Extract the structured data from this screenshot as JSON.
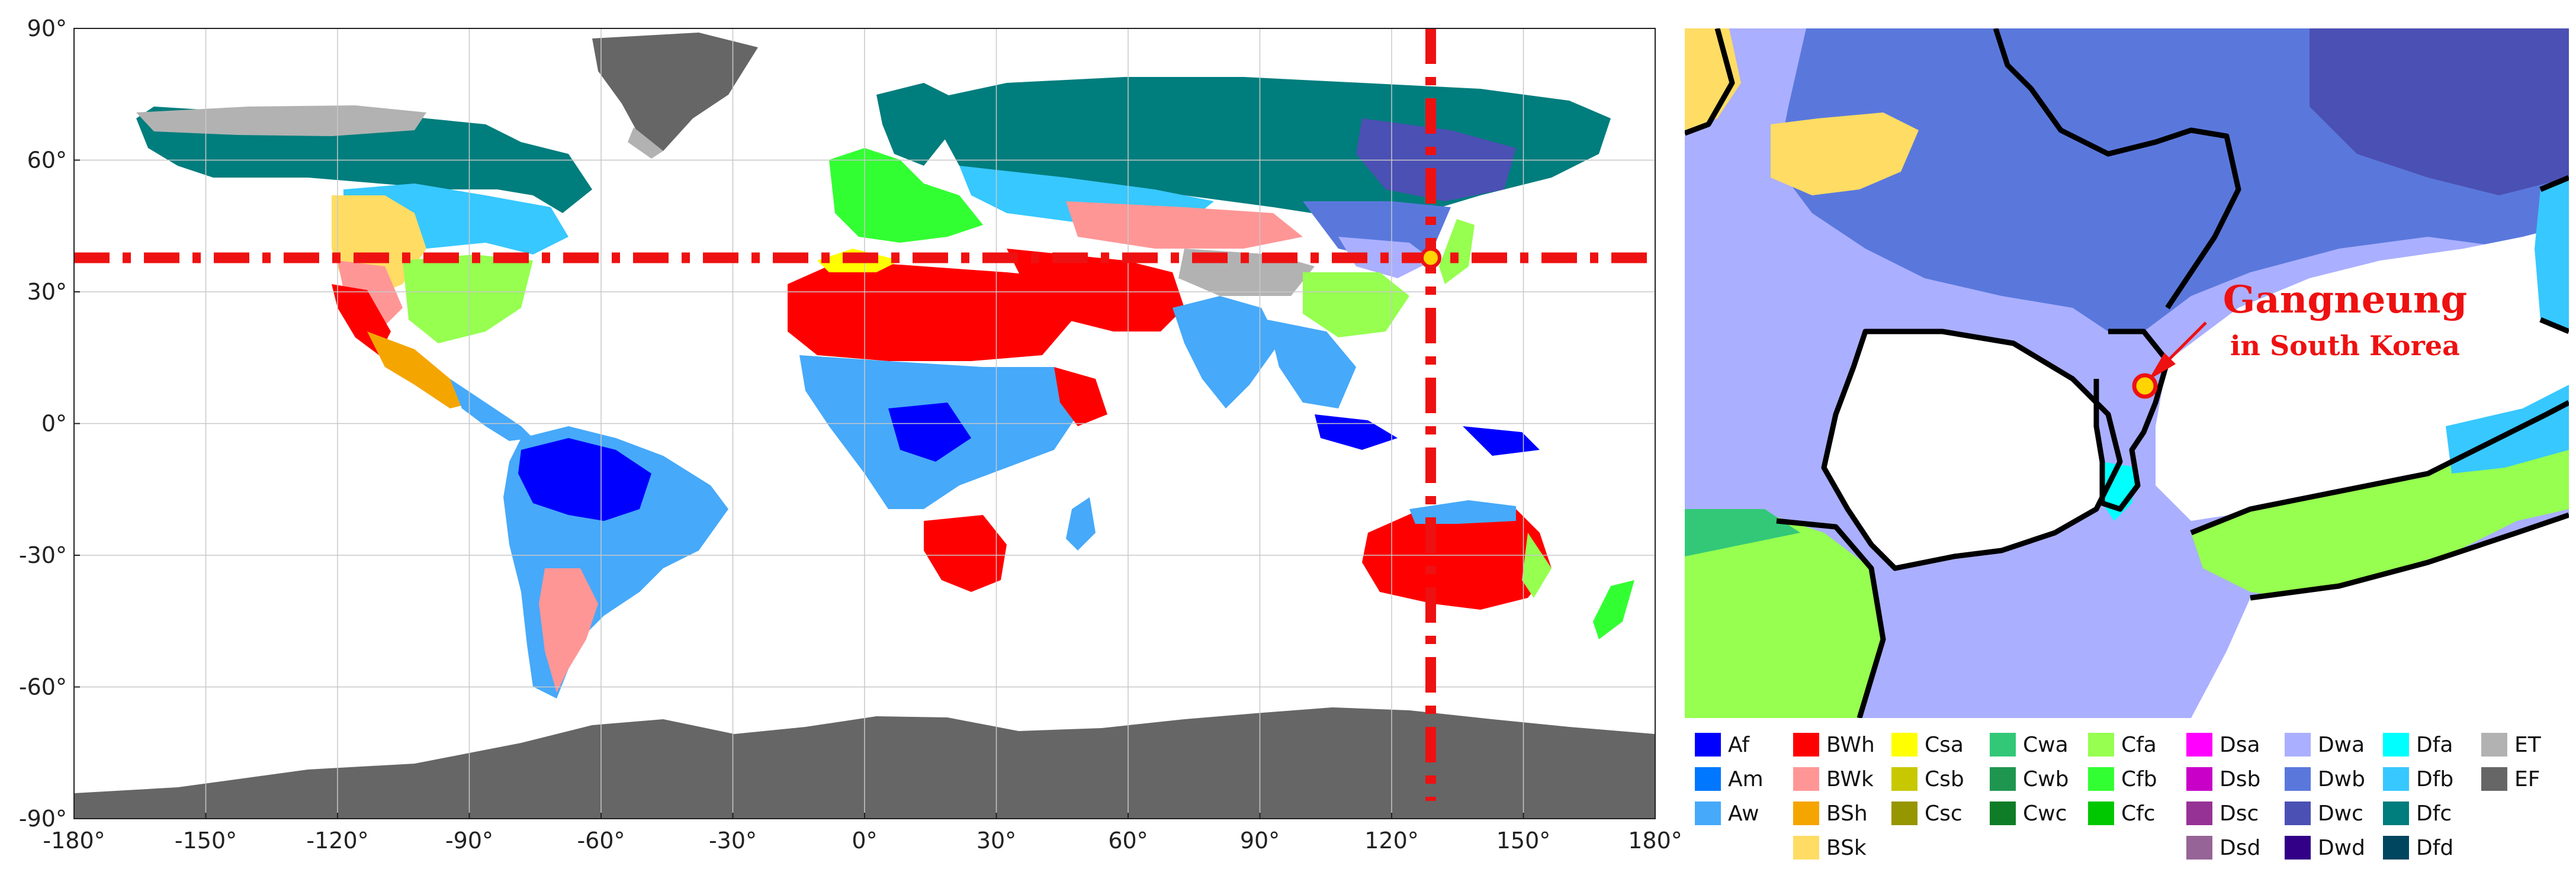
{
  "world_map": {
    "x_ticks": [
      "-180°",
      "-150°",
      "-120°",
      "-90°",
      "-60°",
      "-30°",
      "0°",
      "30°",
      "60°",
      "90°",
      "120°",
      "150°",
      "180°"
    ],
    "y_ticks": [
      "90°",
      "60°",
      "30°",
      "0°",
      "-30°",
      "-60°",
      "-90°"
    ],
    "x_range": [
      -180,
      180
    ],
    "y_range": [
      -90,
      90
    ],
    "grid": true,
    "crosshair": {
      "lon": 128.9,
      "lat": 37.75,
      "color": "#ee1111"
    },
    "marker": {
      "lon": 128.9,
      "lat": 37.75,
      "fill": "#ffd400",
      "stroke": "#ee1111"
    }
  },
  "inset_map": {
    "annotation_title": "Gangneung",
    "annotation_subtitle": "in South Korea",
    "marker": {
      "fill": "#ffd400",
      "stroke": "#ee1111"
    }
  },
  "legend": {
    "columns": [
      [
        {
          "code": "Af",
          "color": "#0000fe"
        },
        {
          "code": "Am",
          "color": "#0077ff"
        },
        {
          "code": "Aw",
          "color": "#46a9fa"
        }
      ],
      [
        {
          "code": "BWh",
          "color": "#ff0000"
        },
        {
          "code": "BWk",
          "color": "#ff9696"
        },
        {
          "code": "BSh",
          "color": "#f5a500"
        },
        {
          "code": "BSk",
          "color": "#ffdc64"
        }
      ],
      [
        {
          "code": "Csa",
          "color": "#ffff00"
        },
        {
          "code": "Csb",
          "color": "#c8c800"
        },
        {
          "code": "Csc",
          "color": "#969600"
        }
      ],
      [
        {
          "code": "Cwa",
          "color": "#32c878"
        },
        {
          "code": "Cwb",
          "color": "#1e9650"
        },
        {
          "code": "Cwc",
          "color": "#0f7d28"
        }
      ],
      [
        {
          "code": "Cfa",
          "color": "#96ff50"
        },
        {
          "code": "Cfb",
          "color": "#32ff32"
        },
        {
          "code": "Cfc",
          "color": "#00c800"
        }
      ],
      [
        {
          "code": "Dsa",
          "color": "#ff00ff"
        },
        {
          "code": "Dsb",
          "color": "#c800c8"
        },
        {
          "code": "Dsc",
          "color": "#963296"
        },
        {
          "code": "Dsd",
          "color": "#966496"
        }
      ],
      [
        {
          "code": "Dwa",
          "color": "#aaafff"
        },
        {
          "code": "Dwb",
          "color": "#5a78dc"
        },
        {
          "code": "Dwc",
          "color": "#4b50b4"
        },
        {
          "code": "Dwd",
          "color": "#320087"
        }
      ],
      [
        {
          "code": "Dfa",
          "color": "#00ffff"
        },
        {
          "code": "Dfb",
          "color": "#37c8ff"
        },
        {
          "code": "Dfc",
          "color": "#007d7d"
        },
        {
          "code": "Dfd",
          "color": "#00465f"
        }
      ],
      [
        {
          "code": "ET",
          "color": "#b2b2b2"
        },
        {
          "code": "EF",
          "color": "#666666"
        }
      ]
    ]
  }
}
